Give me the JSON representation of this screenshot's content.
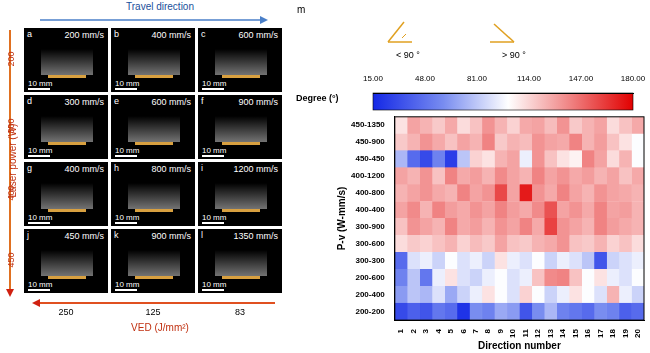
{
  "chart_data": {
    "type": "heatmap",
    "x_label": "Direction number",
    "y_label": "P-v (W-mm/s)",
    "x": [
      1,
      2,
      3,
      4,
      5,
      6,
      7,
      8,
      9,
      10,
      11,
      12,
      13,
      14,
      15,
      16,
      17,
      18,
      19,
      20
    ],
    "xlim": [
      0.5,
      20.5
    ],
    "xticks": [
      1,
      2,
      3,
      4,
      5,
      6,
      7,
      8,
      9,
      10,
      11,
      12,
      13,
      14,
      15,
      16,
      17,
      18,
      19,
      20
    ],
    "categories": [
      "450-1350",
      "450-900",
      "450-450",
      "400-1200",
      "400-800",
      "400-400",
      "300-900",
      "300-600",
      "300-300",
      "200-600",
      "200-400",
      "200-200"
    ],
    "cells": [
      [
        110,
        130,
        125,
        118,
        128,
        112,
        120,
        135,
        125,
        115,
        128,
        130,
        122,
        135,
        118,
        125,
        130,
        112,
        120,
        128
      ],
      [
        118,
        125,
        135,
        128,
        120,
        130,
        125,
        140,
        118,
        125,
        122,
        135,
        130,
        128,
        140,
        125,
        132,
        120,
        110,
        100
      ],
      [
        75,
        45,
        30,
        55,
        25,
        80,
        115,
        110,
        125,
        130,
        95,
        135,
        120,
        110,
        105,
        140,
        130,
        112,
        125,
        100
      ],
      [
        130,
        125,
        135,
        120,
        140,
        128,
        132,
        125,
        138,
        130,
        125,
        140,
        130,
        135,
        128,
        132,
        125,
        130,
        120,
        128
      ],
      [
        125,
        130,
        135,
        128,
        125,
        140,
        130,
        135,
        158,
        130,
        172,
        135,
        128,
        140,
        130,
        125,
        135,
        130,
        128,
        125
      ],
      [
        130,
        138,
        125,
        140,
        132,
        128,
        135,
        130,
        140,
        132,
        128,
        138,
        155,
        130,
        135,
        128,
        140,
        130,
        132,
        125
      ],
      [
        120,
        135,
        130,
        125,
        140,
        128,
        132,
        125,
        135,
        130,
        140,
        128,
        160,
        135,
        130,
        125,
        140,
        132,
        128,
        125
      ],
      [
        112,
        118,
        115,
        120,
        125,
        115,
        122,
        118,
        130,
        120,
        118,
        125,
        128,
        135,
        120,
        118,
        125,
        115,
        120,
        112
      ],
      [
        45,
        90,
        95,
        85,
        100,
        90,
        95,
        85,
        110,
        95,
        90,
        100,
        85,
        95,
        90,
        80,
        35,
        85,
        90,
        95
      ],
      [
        55,
        80,
        50,
        95,
        110,
        90,
        85,
        95,
        100,
        90,
        95,
        120,
        138,
        140,
        120,
        100,
        110,
        95,
        90,
        100
      ],
      [
        65,
        80,
        75,
        90,
        70,
        85,
        95,
        110,
        100,
        90,
        115,
        100,
        85,
        95,
        110,
        100,
        90,
        125,
        95,
        85
      ],
      [
        30,
        40,
        35,
        50,
        45,
        20,
        60,
        55,
        70,
        65,
        35,
        60,
        75,
        55,
        50,
        45,
        60,
        55,
        40,
        45
      ]
    ],
    "colorbar": {
      "label": "Degree (°)",
      "range": [
        15,
        180
      ],
      "ticks": [
        {
          "value": 15,
          "label": "15.00"
        },
        {
          "value": 48,
          "label": "48.00"
        },
        {
          "value": 81,
          "label": "81.00"
        },
        {
          "value": 114,
          "label": "114.00"
        },
        {
          "value": 147,
          "label": "147.00"
        },
        {
          "value": 180,
          "label": "180.00"
        }
      ]
    },
    "grid": false
  },
  "figure": {
    "panel_label": "m",
    "angle_legend": [
      "< 90 °",
      "> 90 °"
    ],
    "travel_label": "Travel direction",
    "power_label": "Laser power (W)",
    "powers": [
      200,
      300,
      400,
      450
    ],
    "ved_label": "VED (J/mm²)",
    "ved_values": [
      250,
      125,
      83
    ],
    "photos": [
      {
        "label": "a",
        "speed": "200 mm/s",
        "scale": "10 mm"
      },
      {
        "label": "b",
        "speed": "400 mm/s",
        "scale": "10 mm"
      },
      {
        "label": "c",
        "speed": "600 mm/s",
        "scale": "10 mm"
      },
      {
        "label": "d",
        "speed": "300 mm/s",
        "scale": "10 mm"
      },
      {
        "label": "e",
        "speed": "600 mm/s",
        "scale": "10 mm"
      },
      {
        "label": "f",
        "speed": "900 mm/s",
        "scale": "10 mm"
      },
      {
        "label": "g",
        "speed": "400 mm/s",
        "scale": "10 mm"
      },
      {
        "label": "h",
        "speed": "800 mm/s",
        "scale": "10 mm"
      },
      {
        "label": "i",
        "speed": "1200 mm/s",
        "scale": "10 mm"
      },
      {
        "label": "j",
        "speed": "450 mm/s",
        "scale": "10 mm"
      },
      {
        "label": "k",
        "speed": "900 mm/s",
        "scale": "10 mm"
      },
      {
        "label": "l",
        "speed": "1350 mm/s",
        "scale": "10 mm"
      }
    ]
  }
}
